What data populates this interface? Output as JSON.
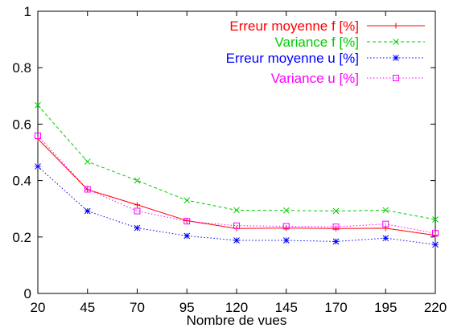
{
  "chart_data": {
    "type": "line",
    "title": "",
    "xlabel": "Nombre de vues",
    "ylabel": "",
    "x": [
      20,
      45,
      70,
      95,
      120,
      145,
      170,
      195,
      220
    ],
    "xticks": [
      "20",
      "45",
      "70",
      "95",
      "120",
      "145",
      "170",
      "195",
      "220"
    ],
    "yticks": [
      "0",
      "0.2",
      "0.4",
      "0.6",
      "0.8",
      "1"
    ],
    "xlim": [
      20,
      220
    ],
    "ylim": [
      0,
      1
    ],
    "grid": false,
    "legend_position": "top-right",
    "series": [
      {
        "name": "Erreur moyenne f [%]",
        "color": "#ff0000",
        "line_style": "solid",
        "marker": "plus",
        "values": [
          0.548,
          0.368,
          0.314,
          0.258,
          0.23,
          0.232,
          0.23,
          0.231,
          0.206
        ]
      },
      {
        "name": "Variance f [%]",
        "color": "#00cc00",
        "line_style": "dashed",
        "marker": "cross",
        "values": [
          0.667,
          0.467,
          0.4,
          0.33,
          0.295,
          0.294,
          0.292,
          0.295,
          0.262
        ]
      },
      {
        "name": "Erreur moyenne  u [%]",
        "color": "#0000ff",
        "line_style": "dotted",
        "marker": "star",
        "values": [
          0.45,
          0.292,
          0.232,
          0.204,
          0.188,
          0.188,
          0.184,
          0.196,
          0.173
        ]
      },
      {
        "name": "Variance u [%]",
        "color": "#ff00ff",
        "line_style": "dotted",
        "marker": "square",
        "values": [
          0.559,
          0.369,
          0.292,
          0.256,
          0.24,
          0.238,
          0.236,
          0.246,
          0.213
        ]
      }
    ]
  }
}
